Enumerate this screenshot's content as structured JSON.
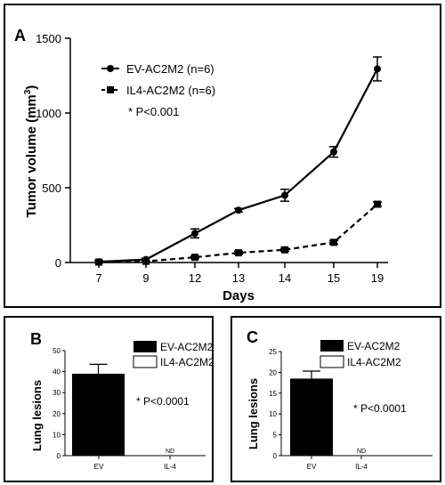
{
  "chart_data": [
    {
      "panel_label": "A",
      "type": "line",
      "xlabel": "Days",
      "ylabel": "Tumor volume (mm",
      "ylabel_sup": "3",
      "ylabel_end": ")",
      "ylim": [
        0,
        1500
      ],
      "yticks": [
        "0",
        "500",
        "1000",
        "1500"
      ],
      "categories": [
        "7",
        "9",
        "12",
        "13",
        "14",
        "15",
        "19"
      ],
      "series": [
        {
          "name": "EV-AC2M2 (n=6)",
          "marker": "circle",
          "style": "solid",
          "values": [
            5,
            20,
            195,
            350,
            450,
            740,
            1295
          ],
          "errors": [
            8,
            10,
            30,
            12,
            40,
            35,
            80
          ]
        },
        {
          "name": "IL4-AC2M2 (n=6)",
          "marker": "square",
          "style": "dashed",
          "values": [
            3,
            8,
            35,
            65,
            85,
            135,
            390
          ],
          "errors": [
            4,
            4,
            8,
            10,
            10,
            12,
            15
          ]
        }
      ],
      "annotation": "* P<0.001"
    },
    {
      "panel_label": "B",
      "type": "bar",
      "ylabel": "Lung lesions",
      "ylim": [
        0,
        50
      ],
      "yticks": [
        "0",
        "10",
        "20",
        "30",
        "40",
        "50"
      ],
      "categories": [
        "EV",
        "IL-4"
      ],
      "values": [
        39,
        0
      ],
      "errors": [
        4.5,
        0
      ],
      "nd_label": "ND",
      "legend": [
        "EV-AC2M2",
        "IL4-AC2M2"
      ],
      "annotation": "* P<0.0001"
    },
    {
      "panel_label": "C",
      "type": "bar",
      "ylabel": "Lung lesions",
      "ylim": [
        0,
        25
      ],
      "yticks": [
        "0",
        "5",
        "10",
        "15",
        "20",
        "25"
      ],
      "categories": [
        "EV",
        "IL-4"
      ],
      "values": [
        18.5,
        0
      ],
      "errors": [
        1.8,
        0
      ],
      "nd_label": "ND",
      "legend": [
        "EV-AC2M2",
        "IL4-AC2M2"
      ],
      "annotation": "* P<0.0001"
    }
  ]
}
